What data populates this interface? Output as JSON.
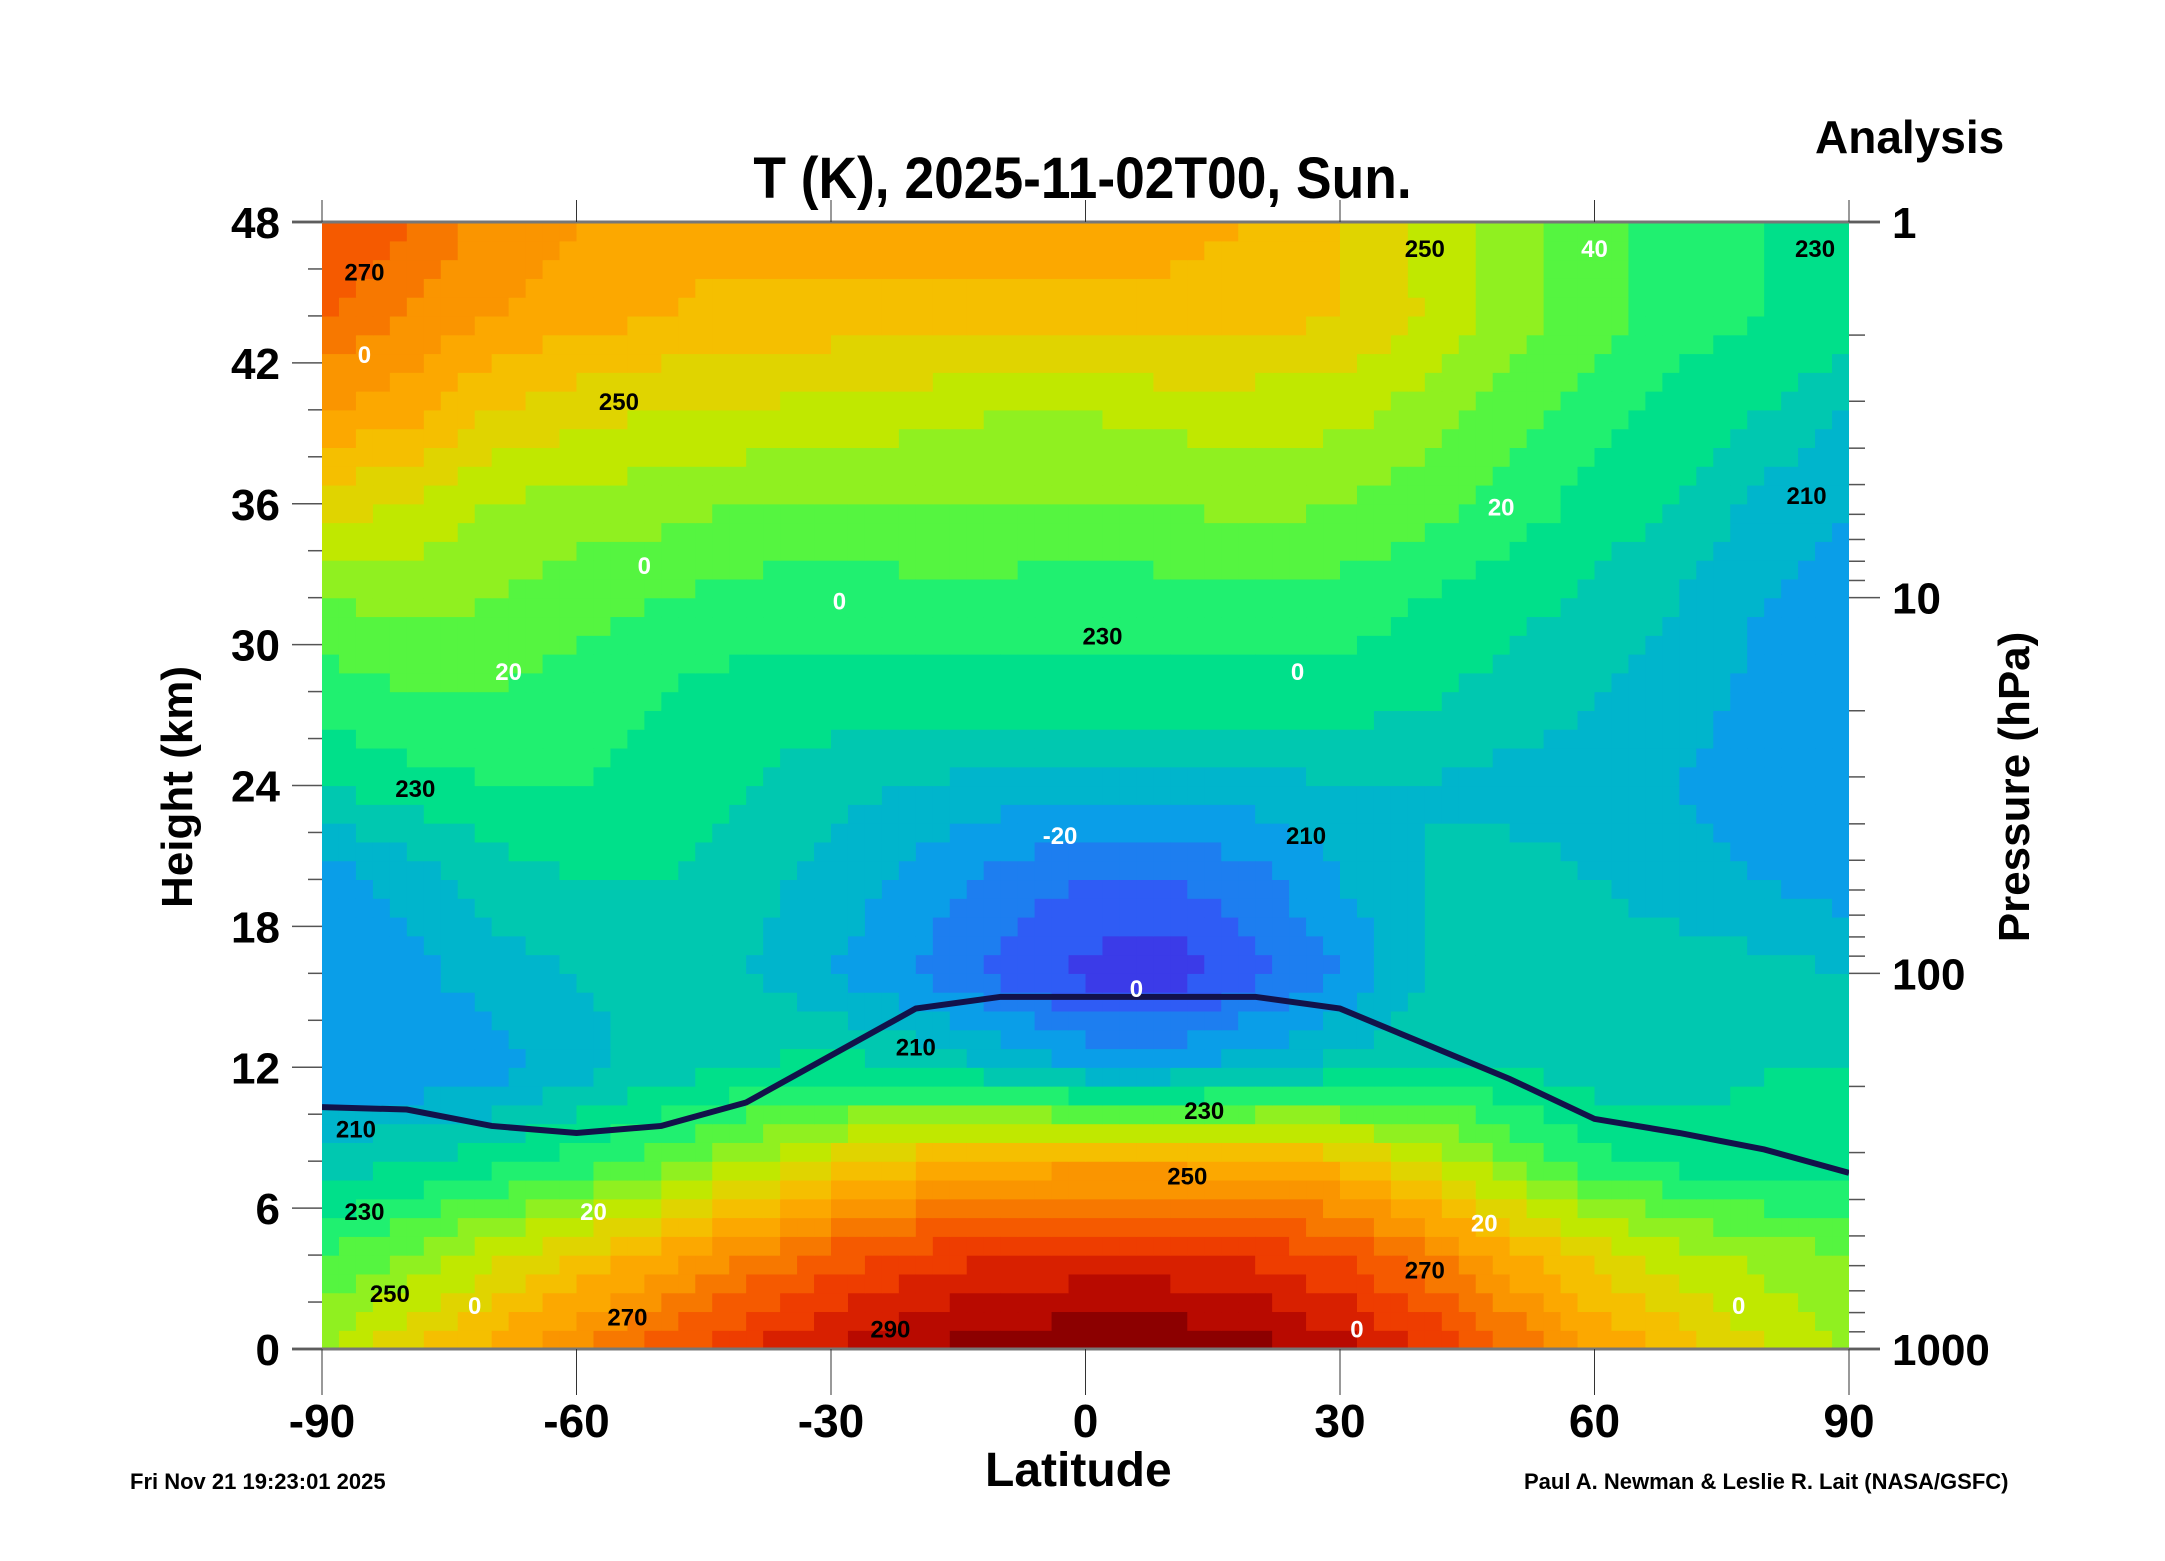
{
  "header": {
    "analysis_label": "Analysis",
    "timestamp": "Fri Nov 21 19:23:01 2025",
    "credit": "Paul A. Newman & Leslie R. Lait (NASA/GSFC)"
  },
  "chart_data": {
    "type": "heatmap",
    "title": "T (K), 2025-11-02T00, Sun.",
    "xlabel": "Latitude",
    "ylabel": "Height (km)",
    "y2label": "Pressure (hPa)",
    "xlim": [
      -90,
      90
    ],
    "ylim": [
      0,
      48
    ],
    "x_ticks": [
      "-90",
      "-60",
      "-30",
      "0",
      "30",
      "60",
      "90"
    ],
    "y_ticks": [
      "0",
      "6",
      "12",
      "18",
      "24",
      "30",
      "36",
      "42",
      "48"
    ],
    "y2_ticks": [
      "1",
      "10",
      "100",
      "1000"
    ],
    "contour_interval_K": 5,
    "lat": [
      -90,
      -80,
      -70,
      -60,
      -50,
      -40,
      -30,
      -20,
      -10,
      0,
      10,
      20,
      30,
      40,
      50,
      60,
      70,
      80,
      90
    ],
    "height": [
      0,
      4,
      8,
      12,
      16,
      20,
      24,
      28,
      32,
      36,
      40,
      44,
      48
    ],
    "temperature": [
      [
        245,
        255,
        262,
        270,
        278,
        285,
        290,
        295,
        298,
        300,
        300,
        297,
        292,
        285,
        275,
        265,
        258,
        250,
        245
      ],
      [
        235,
        240,
        248,
        255,
        262,
        270,
        277,
        282,
        285,
        286,
        286,
        284,
        280,
        272,
        262,
        253,
        247,
        243,
        240
      ],
      [
        222,
        225,
        228,
        232,
        238,
        245,
        252,
        258,
        262,
        263,
        263,
        262,
        258,
        250,
        240,
        232,
        228,
        227,
        226
      ],
      [
        212,
        210,
        212,
        218,
        222,
        225,
        227,
        225,
        220,
        215,
        215,
        218,
        222,
        225,
        225,
        222,
        222,
        225,
        225
      ],
      [
        210,
        213,
        218,
        220,
        222,
        220,
        215,
        210,
        203,
        198,
        197,
        203,
        210,
        220,
        222,
        222,
        222,
        222,
        220
      ],
      [
        212,
        217,
        222,
        225,
        225,
        222,
        218,
        213,
        208,
        205,
        205,
        208,
        215,
        220,
        222,
        220,
        218,
        215,
        212
      ],
      [
        225,
        228,
        230,
        230,
        228,
        225,
        222,
        220,
        218,
        218,
        218,
        218,
        220,
        220,
        218,
        218,
        215,
        210,
        210
      ],
      [
        232,
        235,
        235,
        233,
        230,
        228,
        228,
        228,
        228,
        228,
        228,
        228,
        228,
        226,
        223,
        220,
        218,
        213,
        210
      ],
      [
        240,
        242,
        240,
        237,
        235,
        233,
        232,
        233,
        233,
        232,
        233,
        234,
        233,
        230,
        227,
        224,
        220,
        215,
        212
      ],
      [
        252,
        250,
        245,
        243,
        242,
        240,
        240,
        240,
        240,
        240,
        240,
        242,
        240,
        237,
        233,
        228,
        225,
        218,
        215
      ],
      [
        265,
        262,
        255,
        252,
        250,
        250,
        248,
        247,
        245,
        245,
        247,
        247,
        247,
        243,
        238,
        232,
        228,
        225,
        220
      ],
      [
        275,
        270,
        265,
        262,
        260,
        258,
        258,
        258,
        258,
        258,
        258,
        257,
        255,
        250,
        242,
        237,
        232,
        230,
        228
      ],
      [
        280,
        275,
        268,
        265,
        262,
        262,
        262,
        262,
        262,
        262,
        262,
        260,
        255,
        248,
        242,
        237,
        232,
        230,
        228
      ]
    ],
    "tropopause_km": [
      10.3,
      10.2,
      9.5,
      9.2,
      9.5,
      10.5,
      12.5,
      14.5,
      15,
      15,
      15,
      15,
      14.5,
      13,
      11.5,
      9.8,
      9.2,
      8.5,
      7.5
    ],
    "temperature_labels": [
      {
        "text": "270",
        "lat": -85,
        "h": 45.5
      },
      {
        "text": "250",
        "lat": -55,
        "h": 40
      },
      {
        "text": "230",
        "lat": -79,
        "h": 23.5
      },
      {
        "text": "210",
        "lat": -86,
        "h": 9
      },
      {
        "text": "230",
        "lat": -85,
        "h": 5.5
      },
      {
        "text": "250",
        "lat": -82,
        "h": 2
      },
      {
        "text": "270",
        "lat": -54,
        "h": 1
      },
      {
        "text": "290",
        "lat": -23,
        "h": 0.5
      },
      {
        "text": "210",
        "lat": -20,
        "h": 12.5
      },
      {
        "text": "230",
        "lat": 2,
        "h": 30
      },
      {
        "text": "230",
        "lat": 14,
        "h": 9.8
      },
      {
        "text": "250",
        "lat": 12,
        "h": 7
      },
      {
        "text": "270",
        "lat": 40,
        "h": 3
      },
      {
        "text": "210",
        "lat": 26,
        "h": 21.5
      },
      {
        "text": "250",
        "lat": 40,
        "h": 46.5
      },
      {
        "text": "230",
        "lat": 86,
        "h": 46.5
      },
      {
        "text": "210",
        "lat": 85,
        "h": 36
      }
    ],
    "wind_labels": [
      {
        "text": "0",
        "lat": -85,
        "h": 42
      },
      {
        "text": "0",
        "lat": -52,
        "h": 33
      },
      {
        "text": "20",
        "lat": -68,
        "h": 28.5
      },
      {
        "text": "0",
        "lat": -29,
        "h": 31.5
      },
      {
        "text": "-20",
        "lat": -3,
        "h": 21.5
      },
      {
        "text": "0",
        "lat": 25,
        "h": 28.5
      },
      {
        "text": "0",
        "lat": 6,
        "h": 15
      },
      {
        "text": "20",
        "lat": -58,
        "h": 5.5
      },
      {
        "text": "20",
        "lat": 47,
        "h": 5
      },
      {
        "text": "20",
        "lat": 49,
        "h": 35.5
      },
      {
        "text": "40",
        "lat": 60,
        "h": 46.5
      },
      {
        "text": "0",
        "lat": 32,
        "h": 0.5
      },
      {
        "text": "0",
        "lat": 77,
        "h": 1.5
      },
      {
        "text": "0",
        "lat": -72,
        "h": 1.5
      }
    ],
    "palette": [
      "#3a1fd0",
      "#3b3be8",
      "#2f5cf5",
      "#1d7ef0",
      "#0a9ee8",
      "#00b5cc",
      "#00c8b0",
      "#00e08a",
      "#20f070",
      "#55f540",
      "#90f020",
      "#c0e800",
      "#e0d400",
      "#f5bf00",
      "#fca800",
      "#fa9500",
      "#f77800",
      "#f55a00",
      "#ee3d00",
      "#d82000",
      "#b80a00",
      "#8c0000",
      "#650000"
    ],
    "palette_start_K": 190,
    "tropopause_color": "#12124a"
  }
}
